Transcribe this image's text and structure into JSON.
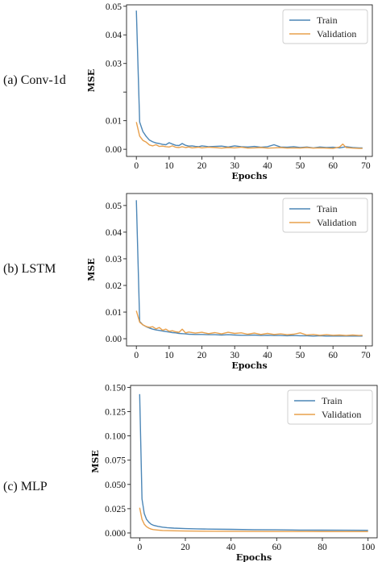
{
  "chart_data": [
    {
      "panel_label": "(a) Conv-1d",
      "type": "line",
      "xlabel": "Epochs",
      "ylabel": "MSE",
      "xlim": [
        -3,
        72
      ],
      "ylim": [
        -0.0025,
        0.0505
      ],
      "xticks": [
        0,
        10,
        20,
        30,
        40,
        50,
        60,
        70
      ],
      "yticks": [
        0.0,
        0.01,
        0.02,
        0.03,
        0.04,
        0.05
      ],
      "ytick_labels": [
        "0.00",
        "0.01",
        "",
        "0.03",
        "0.04",
        "0.05"
      ],
      "legend": {
        "position": "top-right",
        "entries": [
          "Train",
          "Validation"
        ]
      },
      "colors": {
        "Train": "#4c86b6",
        "Validation": "#e8a04c"
      },
      "series": [
        {
          "name": "Train",
          "x": [
            0,
            1,
            2,
            3,
            4,
            5,
            6,
            7,
            8,
            9,
            10,
            11,
            12,
            13,
            14,
            15,
            16,
            17,
            18,
            19,
            20,
            22,
            24,
            26,
            28,
            30,
            32,
            34,
            36,
            38,
            40,
            42,
            44,
            46,
            48,
            50,
            52,
            54,
            56,
            58,
            60,
            62,
            64,
            66,
            68,
            69
          ],
          "values": [
            0.0485,
            0.0095,
            0.0062,
            0.0045,
            0.0032,
            0.0026,
            0.0022,
            0.002,
            0.0017,
            0.0016,
            0.0023,
            0.0018,
            0.0014,
            0.0013,
            0.002,
            0.0014,
            0.0011,
            0.0012,
            0.001,
            0.0009,
            0.0012,
            0.0009,
            0.001,
            0.0011,
            0.0008,
            0.0012,
            0.0009,
            0.0008,
            0.001,
            0.0007,
            0.0009,
            0.0016,
            0.0008,
            0.0007,
            0.0009,
            0.0006,
            0.0008,
            0.0005,
            0.0008,
            0.0006,
            0.0007,
            0.0005,
            0.0009,
            0.0006,
            0.0005,
            0.0005
          ]
        },
        {
          "name": "Validation",
          "x": [
            0,
            1,
            2,
            3,
            4,
            5,
            6,
            7,
            8,
            9,
            10,
            11,
            12,
            13,
            14,
            15,
            16,
            17,
            18,
            19,
            20,
            22,
            24,
            26,
            28,
            30,
            32,
            34,
            36,
            38,
            40,
            42,
            44,
            46,
            48,
            50,
            52,
            54,
            56,
            58,
            60,
            62,
            63,
            64,
            66,
            68,
            69
          ],
          "values": [
            0.0095,
            0.0046,
            0.0031,
            0.0025,
            0.0015,
            0.0012,
            0.0016,
            0.001,
            0.0011,
            0.0009,
            0.0008,
            0.0012,
            0.0007,
            0.0006,
            0.0009,
            0.0006,
            0.0008,
            0.0005,
            0.0006,
            0.0007,
            0.0005,
            0.0007,
            0.0006,
            0.0004,
            0.0006,
            0.0005,
            0.0007,
            0.0004,
            0.0005,
            0.0006,
            0.0004,
            0.0005,
            0.0006,
            0.0004,
            0.0005,
            0.0004,
            0.0006,
            0.0004,
            0.0005,
            0.0004,
            0.0003,
            0.0008,
            0.0018,
            0.0006,
            0.0004,
            0.0003,
            0.0003
          ]
        }
      ]
    },
    {
      "panel_label": "(b) LSTM",
      "type": "line",
      "xlabel": "Epochs",
      "ylabel": "MSE",
      "xlim": [
        -3,
        72
      ],
      "ylim": [
        -0.0027,
        0.0545
      ],
      "xticks": [
        0,
        10,
        20,
        30,
        40,
        50,
        60,
        70
      ],
      "yticks": [
        0.0,
        0.01,
        0.02,
        0.03,
        0.04,
        0.05
      ],
      "ytick_labels": [
        "0.00",
        "0.01",
        "0.02",
        "0.03",
        "0.04",
        "0.05"
      ],
      "legend": {
        "position": "top-right",
        "entries": [
          "Train",
          "Validation"
        ]
      },
      "colors": {
        "Train": "#4c86b6",
        "Validation": "#e8a04c"
      },
      "series": [
        {
          "name": "Train",
          "x": [
            0,
            1,
            2,
            3,
            4,
            5,
            6,
            7,
            8,
            9,
            10,
            11,
            12,
            13,
            14,
            15,
            16,
            18,
            20,
            22,
            24,
            26,
            28,
            30,
            32,
            34,
            36,
            38,
            40,
            42,
            44,
            46,
            48,
            50,
            52,
            54,
            56,
            58,
            60,
            62,
            64,
            66,
            68,
            69
          ],
          "values": [
            0.052,
            0.0065,
            0.0052,
            0.0045,
            0.004,
            0.0036,
            0.0033,
            0.0031,
            0.0029,
            0.0027,
            0.0025,
            0.0023,
            0.0022,
            0.002,
            0.0019,
            0.0018,
            0.0017,
            0.0016,
            0.0016,
            0.0015,
            0.0015,
            0.0014,
            0.0015,
            0.0014,
            0.0013,
            0.0013,
            0.0014,
            0.0012,
            0.0013,
            0.0012,
            0.0012,
            0.0011,
            0.0012,
            0.0011,
            0.0011,
            0.001,
            0.0011,
            0.001,
            0.001,
            0.001,
            0.001,
            0.001,
            0.001,
            0.001
          ]
        },
        {
          "name": "Validation",
          "x": [
            0,
            1,
            2,
            3,
            4,
            5,
            6,
            7,
            8,
            9,
            10,
            11,
            12,
            13,
            14,
            15,
            16,
            18,
            20,
            22,
            24,
            26,
            28,
            30,
            32,
            34,
            36,
            38,
            40,
            42,
            44,
            46,
            48,
            50,
            52,
            54,
            56,
            58,
            60,
            62,
            64,
            66,
            68,
            69
          ],
          "values": [
            0.0105,
            0.0062,
            0.0052,
            0.0046,
            0.0043,
            0.0045,
            0.0037,
            0.0042,
            0.0032,
            0.0036,
            0.0028,
            0.003,
            0.0026,
            0.0024,
            0.0036,
            0.0022,
            0.0025,
            0.0021,
            0.0024,
            0.0019,
            0.0023,
            0.0018,
            0.0024,
            0.002,
            0.0022,
            0.0017,
            0.0021,
            0.0016,
            0.002,
            0.0016,
            0.0018,
            0.0015,
            0.0017,
            0.0022,
            0.0014,
            0.0016,
            0.0013,
            0.0015,
            0.0013,
            0.0014,
            0.0012,
            0.0014,
            0.0012,
            0.0013
          ]
        }
      ]
    },
    {
      "panel_label": "(c) MLP",
      "type": "line",
      "xlabel": "Epochs",
      "ylabel": "MSE",
      "xlim": [
        -4,
        104
      ],
      "ylim": [
        -0.005,
        0.152
      ],
      "xticks": [
        0,
        20,
        40,
        60,
        80,
        100
      ],
      "yticks": [
        0.0,
        0.025,
        0.05,
        0.075,
        0.1,
        0.125,
        0.15
      ],
      "ytick_labels": [
        "0.000",
        "0.025",
        "0.050",
        "0.075",
        "0.100",
        "0.125",
        "0.150"
      ],
      "legend": {
        "position": "top-right",
        "entries": [
          "Train",
          "Validation"
        ]
      },
      "colors": {
        "Train": "#4c86b6",
        "Validation": "#e8a04c"
      },
      "series": [
        {
          "name": "Train",
          "x": [
            0,
            1,
            2,
            3,
            4,
            5,
            6,
            8,
            10,
            12,
            15,
            20,
            25,
            30,
            40,
            50,
            60,
            70,
            80,
            90,
            100
          ],
          "values": [
            0.143,
            0.035,
            0.02,
            0.014,
            0.011,
            0.009,
            0.008,
            0.0068,
            0.006,
            0.0055,
            0.005,
            0.0045,
            0.0042,
            0.004,
            0.0037,
            0.0034,
            0.0032,
            0.003,
            0.0029,
            0.0028,
            0.0027
          ]
        },
        {
          "name": "Validation",
          "x": [
            0,
            1,
            2,
            3,
            4,
            5,
            6,
            8,
            10,
            12,
            15,
            20,
            25,
            30,
            40,
            50,
            60,
            70,
            80,
            90,
            100
          ],
          "values": [
            0.026,
            0.014,
            0.009,
            0.0065,
            0.005,
            0.004,
            0.0035,
            0.003,
            0.0026,
            0.0024,
            0.0022,
            0.002,
            0.0019,
            0.0018,
            0.0017,
            0.0016,
            0.0015,
            0.0015,
            0.0014,
            0.0014,
            0.0014
          ]
        }
      ]
    }
  ]
}
